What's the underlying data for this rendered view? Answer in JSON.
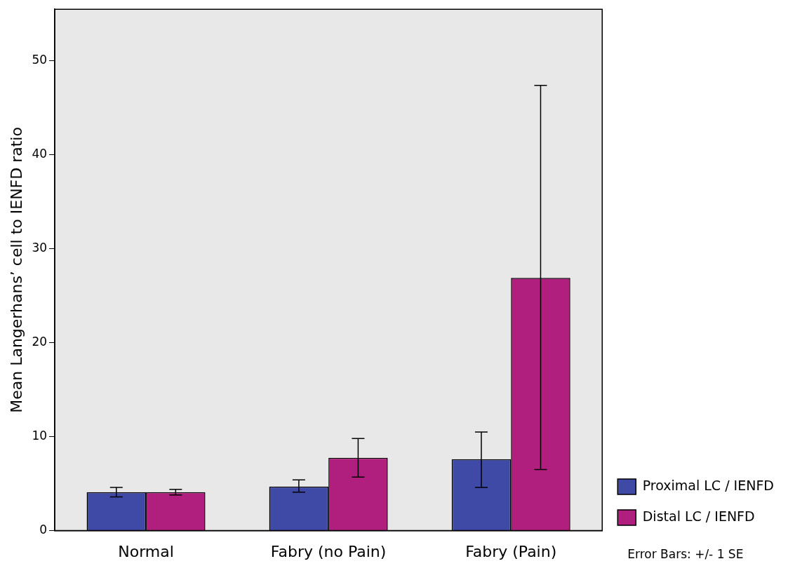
{
  "chart_data": {
    "type": "bar",
    "ylabel": "Mean Langerhans’ cell to IENFD ratio",
    "categories": [
      "Normal",
      "Fabry (no Pain)",
      "Fabry (Pain)"
    ],
    "series": [
      {
        "name": "Proximal LC / IENFD",
        "color": "#3f4aa6",
        "values": [
          4.1,
          4.7,
          7.6
        ],
        "errors": [
          [
            3.6,
            4.6
          ],
          [
            4.1,
            5.4
          ],
          [
            4.6,
            10.5
          ]
        ]
      },
      {
        "name": "Distal LC / IENFD",
        "color": "#b01f7d",
        "values": [
          4.1,
          7.75,
          26.9
        ],
        "errors": [
          [
            3.8,
            4.4
          ],
          [
            5.7,
            9.8
          ],
          [
            6.5,
            47.4
          ]
        ]
      }
    ],
    "ylim": [
      0,
      55.5
    ],
    "yticks": [
      0,
      10,
      20,
      30,
      40,
      50
    ],
    "grid": false,
    "legend": "bottom right",
    "annotations": [
      "Error Bars: +/- 1 SE"
    ]
  }
}
